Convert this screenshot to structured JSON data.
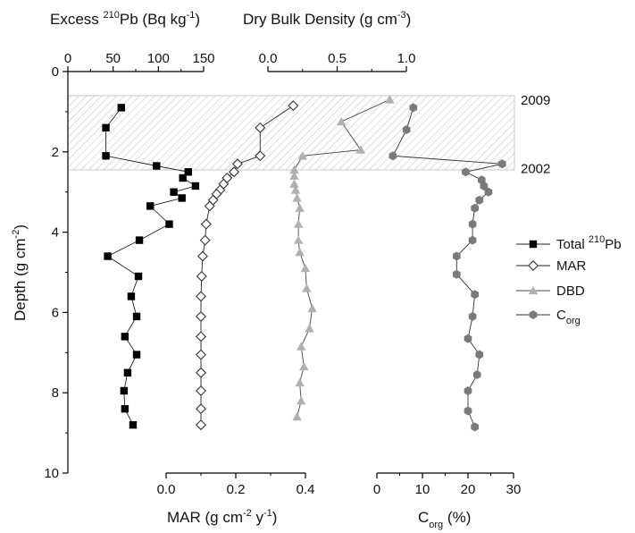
{
  "chart_data": {
    "type": "scatter",
    "y_axis": {
      "label": "Depth (g cm",
      "label_sup": "-2",
      "label_end": ")",
      "lim": [
        0,
        10
      ],
      "ticks": [
        0,
        2,
        4,
        6,
        8,
        10
      ],
      "inverted": true
    },
    "top_axes": [
      {
        "label_pre": "Excess ",
        "label_sup": "210",
        "label_mid": "Pb (Bq kg",
        "label_sup2": "-1",
        "label_end": ")",
        "ticks": [
          0,
          50,
          100,
          150
        ]
      },
      {
        "label_pre": "Dry Bulk Density (g cm",
        "label_sup": "-3",
        "label_end": ")",
        "ticks": [
          "0.0",
          "0.5",
          "1.0"
        ]
      }
    ],
    "bottom_axes": [
      {
        "label_pre": "MAR (g cm",
        "label_sup": "-2",
        "label_mid": " y",
        "label_sup2": "-1",
        "label_end": ")",
        "ticks": [
          "0.0",
          "0.2",
          "0.4"
        ]
      },
      {
        "label_pre": "C",
        "label_sub": "org",
        "label_end": " (%)",
        "ticks": [
          "0",
          "10",
          "20",
          "30"
        ]
      }
    ],
    "shaded_band": {
      "y_from": 0.6,
      "y_to": 2.45
    },
    "annotations": [
      {
        "text": "2009",
        "y": 0.6
      },
      {
        "text": "2002",
        "y": 2.3
      }
    ],
    "series": [
      {
        "name": "Total ",
        "name_sup": "210",
        "name_end": "Pb",
        "marker": "square",
        "color": "#000000",
        "xlim": [
          0,
          150
        ],
        "points": [
          [
            59,
            0.9
          ],
          [
            42,
            1.4
          ],
          [
            42,
            2.1
          ],
          [
            98,
            2.35
          ],
          [
            133,
            2.5
          ],
          [
            127,
            2.65
          ],
          [
            141,
            2.85
          ],
          [
            117,
            3.0
          ],
          [
            126,
            3.15
          ],
          [
            91,
            3.35
          ],
          [
            112,
            3.8
          ],
          [
            79,
            4.2
          ],
          [
            44,
            4.6
          ],
          [
            78,
            5.1
          ],
          [
            70,
            5.6
          ],
          [
            76,
            6.1
          ],
          [
            63,
            6.6
          ],
          [
            76,
            7.05
          ],
          [
            66,
            7.5
          ],
          [
            62,
            7.95
          ],
          [
            63,
            8.4
          ],
          [
            72,
            8.8
          ]
        ]
      },
      {
        "name": "MAR",
        "marker": "diamond",
        "color": "#333333",
        "xlim": [
          0,
          0.4
        ],
        "points": [
          [
            0.365,
            0.85
          ],
          [
            0.27,
            1.4
          ],
          [
            0.27,
            2.1
          ],
          [
            0.205,
            2.3
          ],
          [
            0.195,
            2.5
          ],
          [
            0.175,
            2.65
          ],
          [
            0.165,
            2.8
          ],
          [
            0.155,
            2.95
          ],
          [
            0.145,
            3.05
          ],
          [
            0.135,
            3.2
          ],
          [
            0.125,
            3.35
          ],
          [
            0.115,
            3.8
          ],
          [
            0.112,
            4.2
          ],
          [
            0.105,
            4.6
          ],
          [
            0.102,
            5.1
          ],
          [
            0.1,
            5.6
          ],
          [
            0.1,
            6.1
          ],
          [
            0.1,
            6.6
          ],
          [
            0.1,
            7.05
          ],
          [
            0.1,
            7.5
          ],
          [
            0.1,
            7.95
          ],
          [
            0.1,
            8.4
          ],
          [
            0.1,
            8.8
          ]
        ]
      },
      {
        "name": "DBD",
        "marker": "triangle",
        "color": "#b0b0b0",
        "xlim": [
          0,
          1.0
        ],
        "points": [
          [
            0.88,
            0.7
          ],
          [
            0.53,
            1.25
          ],
          [
            0.67,
            1.95
          ],
          [
            0.25,
            2.1
          ],
          [
            0.19,
            2.45
          ],
          [
            0.19,
            2.6
          ],
          [
            0.19,
            2.8
          ],
          [
            0.2,
            2.95
          ],
          [
            0.21,
            3.15
          ],
          [
            0.23,
            3.4
          ],
          [
            0.22,
            3.8
          ],
          [
            0.22,
            4.2
          ],
          [
            0.23,
            4.5
          ],
          [
            0.27,
            4.9
          ],
          [
            0.28,
            5.4
          ],
          [
            0.32,
            5.9
          ],
          [
            0.3,
            6.4
          ],
          [
            0.24,
            6.85
          ],
          [
            0.26,
            7.35
          ],
          [
            0.23,
            7.75
          ],
          [
            0.24,
            8.2
          ],
          [
            0.21,
            8.6
          ]
        ]
      },
      {
        "name": "C",
        "name_sub": "org",
        "marker": "hexagon",
        "color": "#7a7a7a",
        "xlim": [
          0,
          30
        ],
        "points": [
          [
            8,
            0.9
          ],
          [
            6.5,
            1.45
          ],
          [
            3.5,
            2.1
          ],
          [
            27.5,
            2.3
          ],
          [
            19.5,
            2.5
          ],
          [
            23,
            2.7
          ],
          [
            23.5,
            2.85
          ],
          [
            24.5,
            3.0
          ],
          [
            22.5,
            3.2
          ],
          [
            21.5,
            3.4
          ],
          [
            21,
            3.8
          ],
          [
            21,
            4.2
          ],
          [
            17.5,
            4.6
          ],
          [
            17.5,
            5.05
          ],
          [
            21.5,
            5.55
          ],
          [
            21,
            6.1
          ],
          [
            20,
            6.65
          ],
          [
            22.5,
            7.05
          ],
          [
            22,
            7.55
          ],
          [
            20,
            7.95
          ],
          [
            20,
            8.45
          ],
          [
            21.5,
            8.85
          ]
        ]
      }
    ],
    "legend_position": "right"
  }
}
